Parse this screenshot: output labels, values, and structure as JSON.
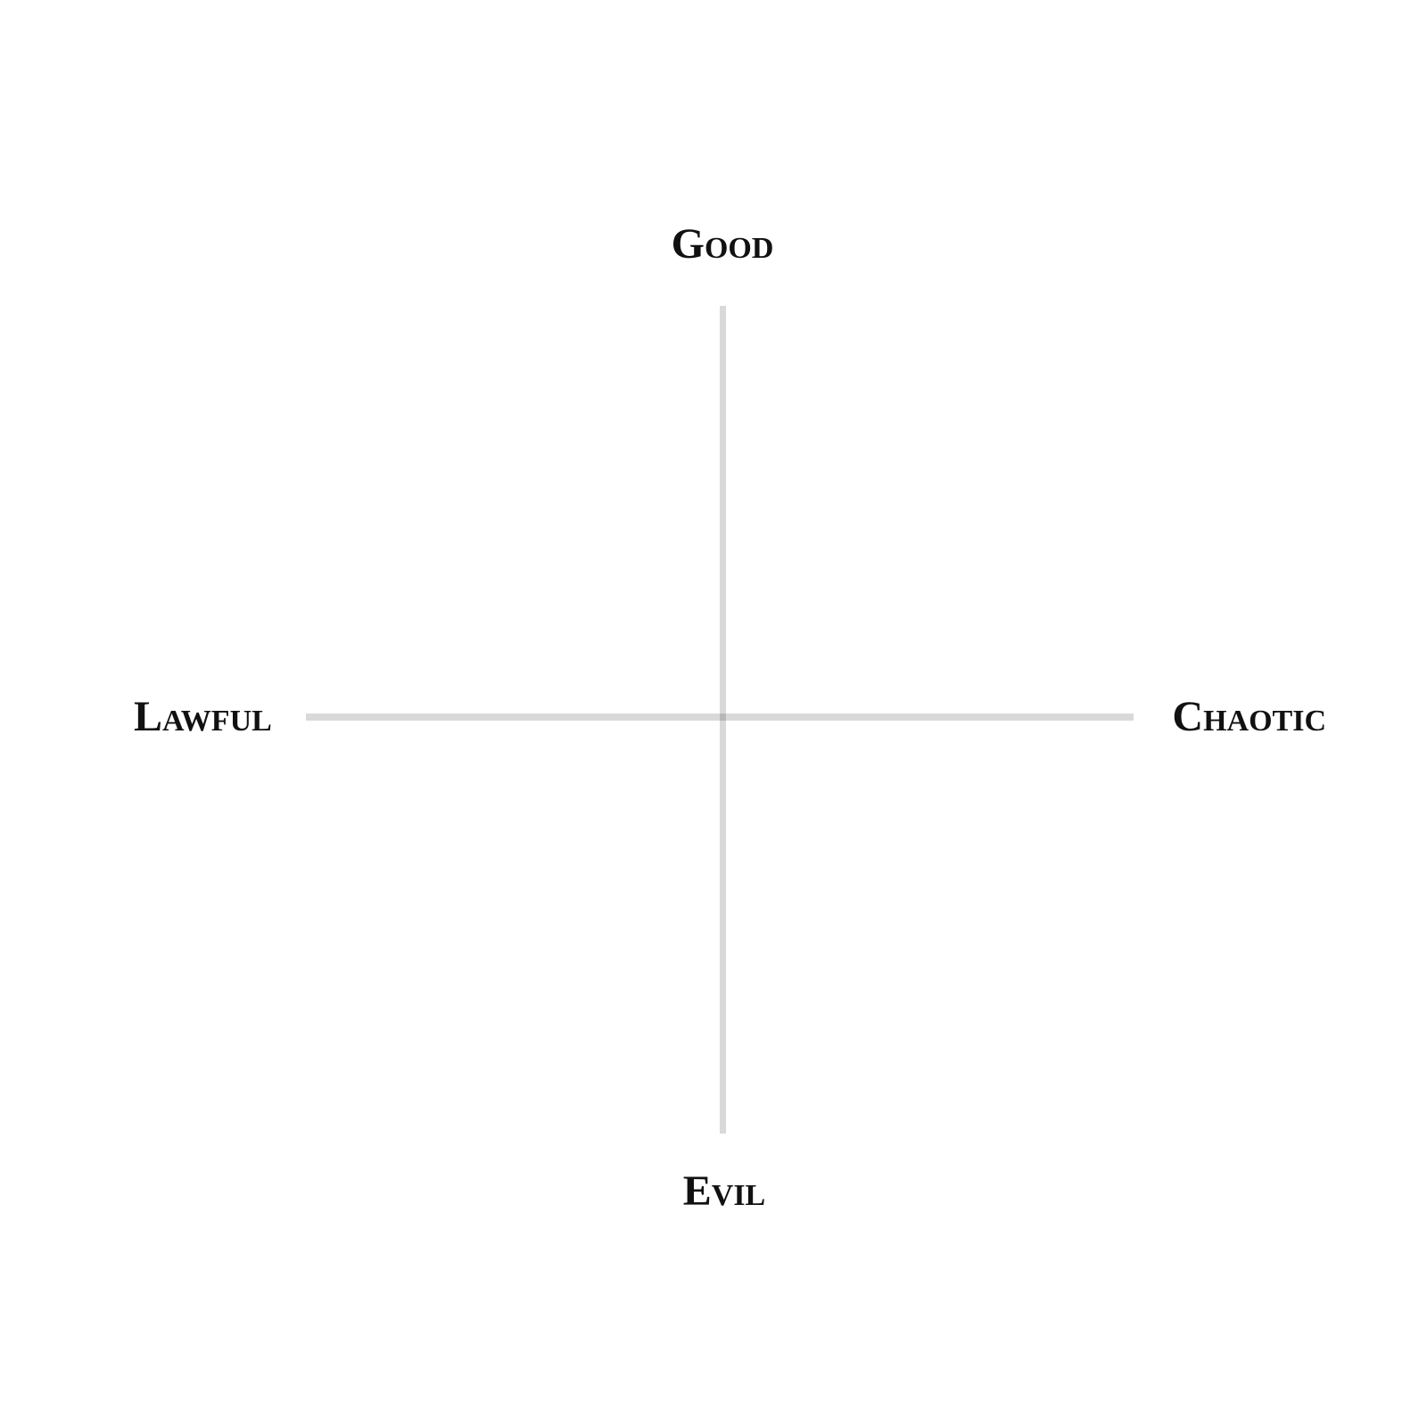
{
  "labels": {
    "top": "Good",
    "bottom": "Evil",
    "left": "Lawful",
    "right": "Chaotic"
  },
  "colors": {
    "axis": "#d9d9d9",
    "text": "#111111",
    "background": "#ffffff"
  }
}
